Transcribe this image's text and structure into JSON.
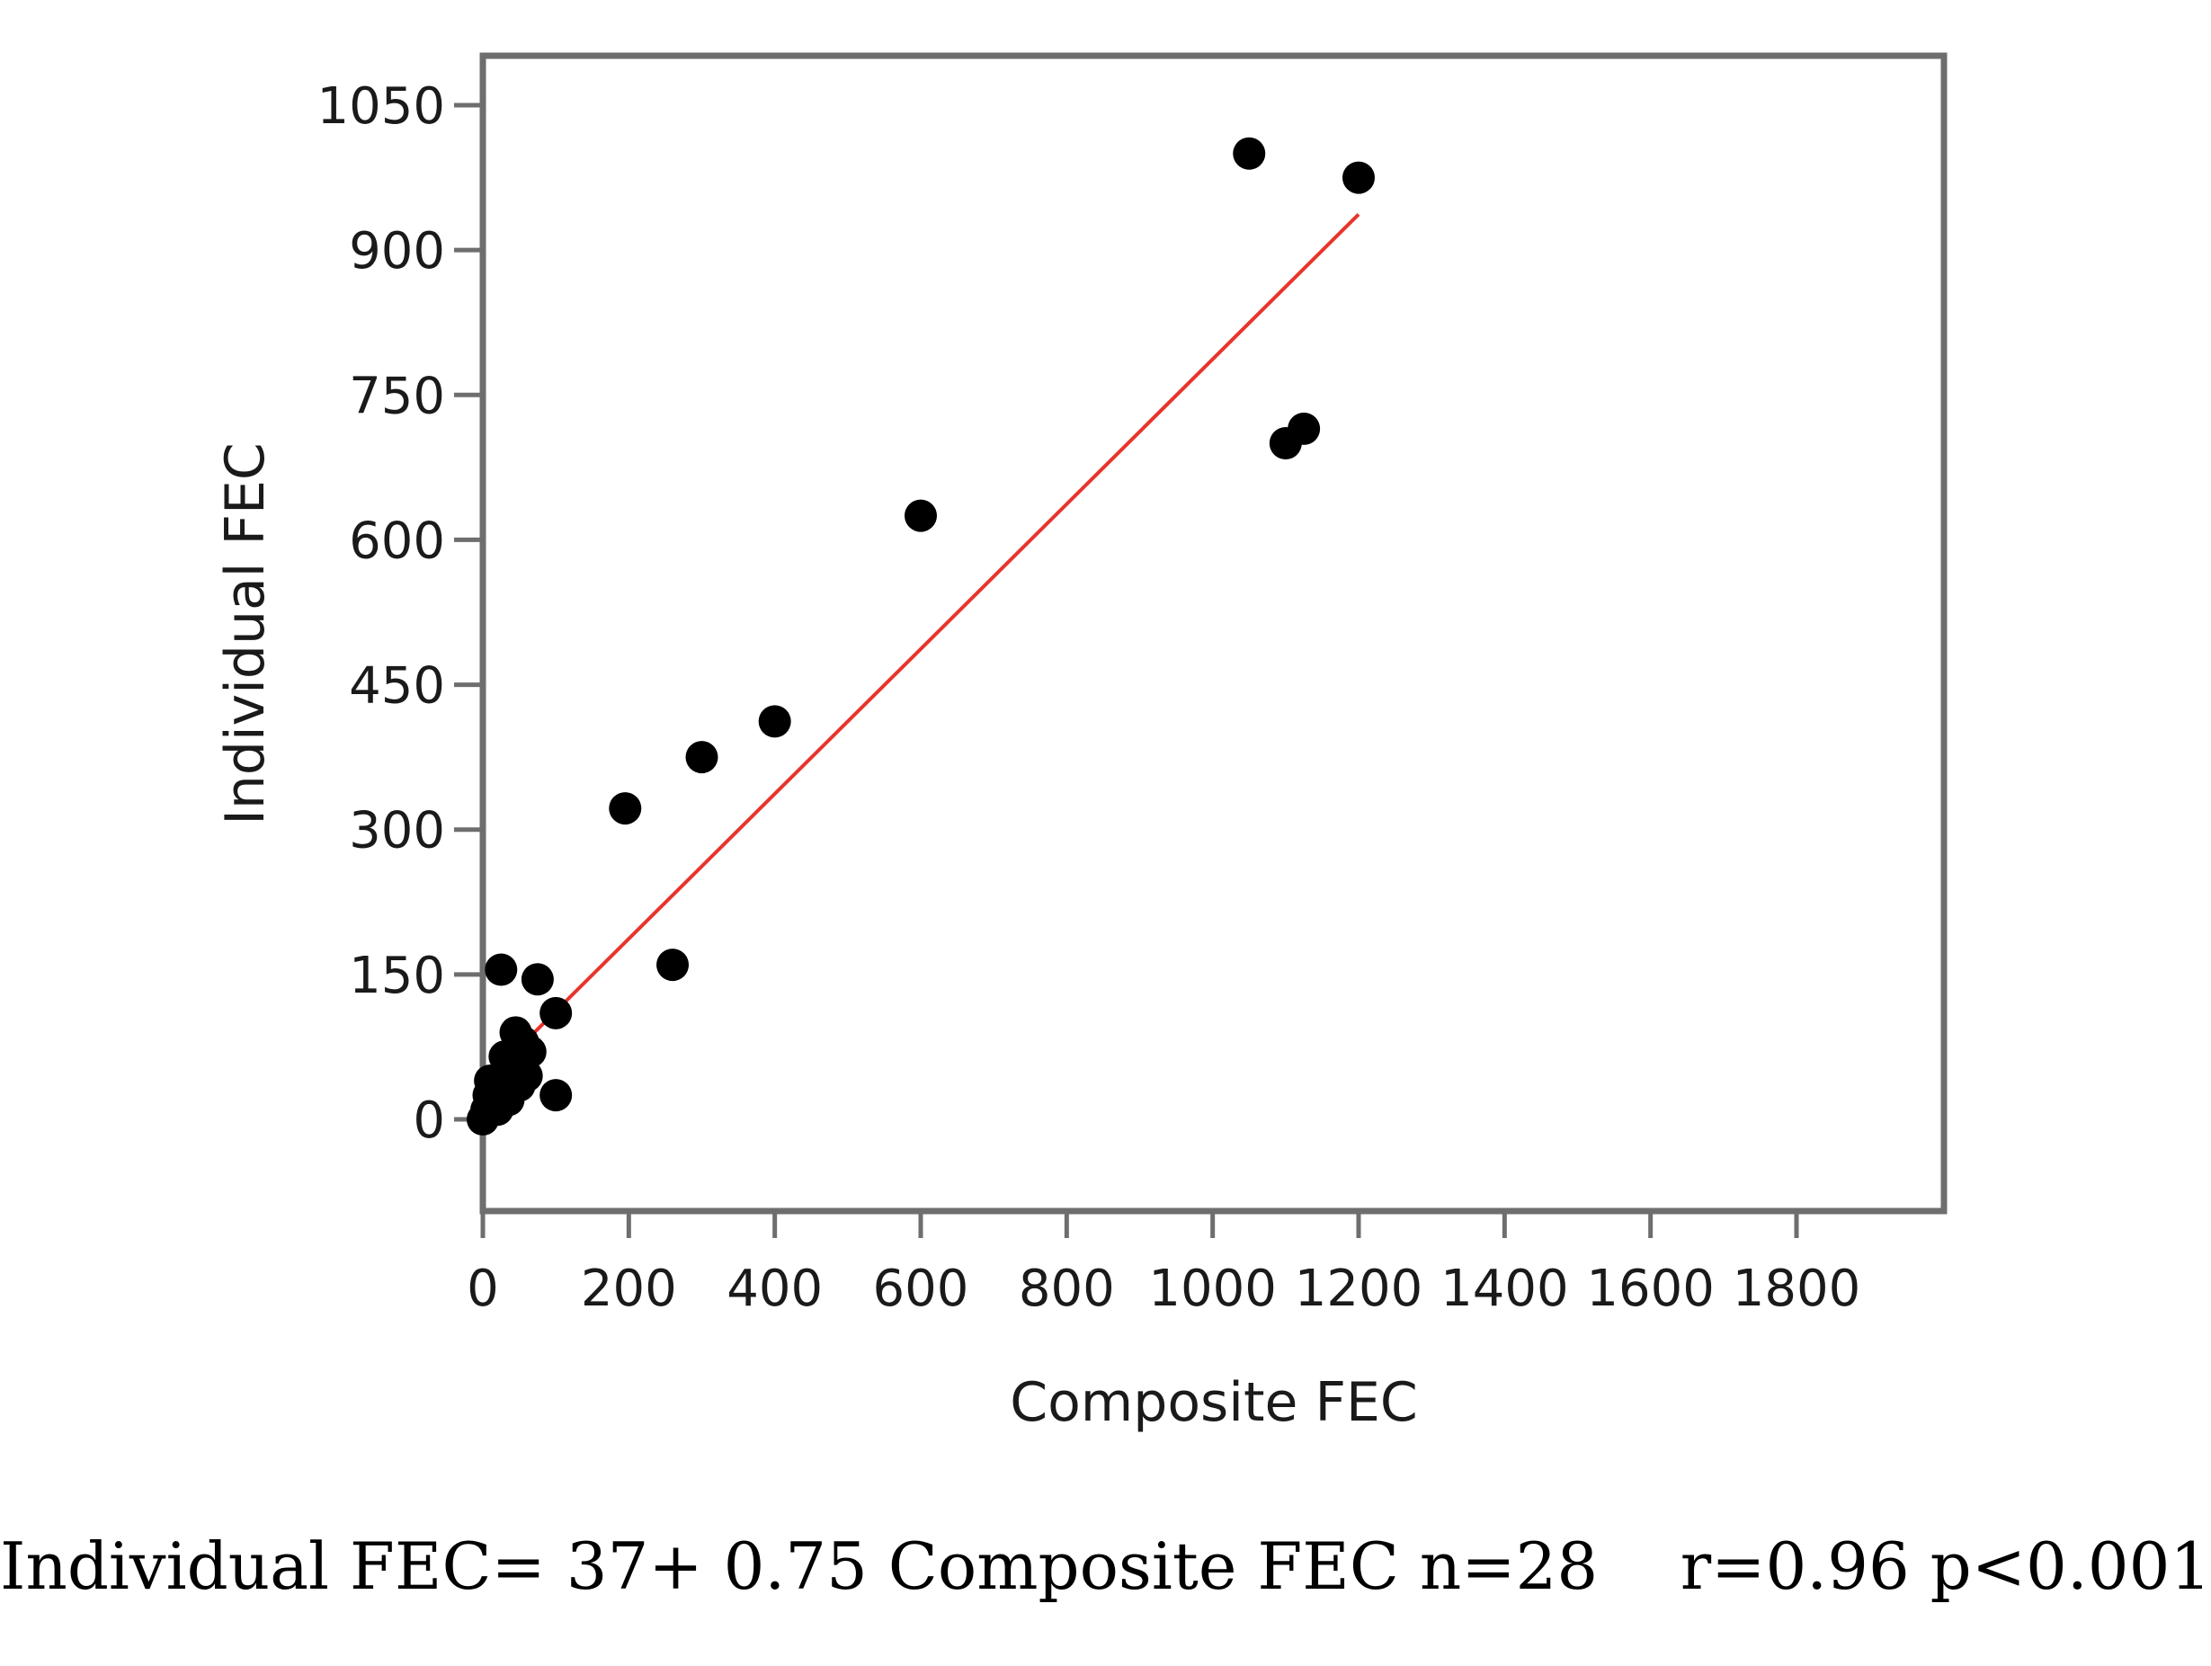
{
  "chart_data": {
    "type": "scatter",
    "title": "",
    "xlabel": "Composite FEC",
    "ylabel": "Individual FEC",
    "xlim": [
      0,
      2000
    ],
    "ylim": [
      -90,
      1100
    ],
    "x_ticks": [
      0,
      200,
      400,
      600,
      800,
      1000,
      1200,
      1400,
      1600,
      1800
    ],
    "y_ticks": [
      0,
      150,
      300,
      450,
      600,
      750,
      900,
      1050
    ],
    "grid": false,
    "series": [
      {
        "color": "#000000",
        "points": [
          {
            "x": 0,
            "y": 0
          },
          {
            "x": 5,
            "y": 10
          },
          {
            "x": 8,
            "y": 25
          },
          {
            "x": 10,
            "y": 40
          },
          {
            "x": 15,
            "y": 15
          },
          {
            "x": 20,
            "y": 30
          },
          {
            "x": 25,
            "y": 155
          },
          {
            "x": 30,
            "y": 65
          },
          {
            "x": 35,
            "y": 20
          },
          {
            "x": 40,
            "y": 55
          },
          {
            "x": 45,
            "y": 90
          },
          {
            "x": 50,
            "y": 35
          },
          {
            "x": 55,
            "y": 80
          },
          {
            "x": 60,
            "y": 45
          },
          {
            "x": 65,
            "y": 70
          },
          {
            "x": 75,
            "y": 145
          },
          {
            "x": 100,
            "y": 110
          },
          {
            "x": 100,
            "y": 25
          },
          {
            "x": 195,
            "y": 322
          },
          {
            "x": 260,
            "y": 160
          },
          {
            "x": 300,
            "y": 375
          },
          {
            "x": 400,
            "y": 412
          },
          {
            "x": 600,
            "y": 625
          },
          {
            "x": 1050,
            "y": 1000
          },
          {
            "x": 1100,
            "y": 700
          },
          {
            "x": 1125,
            "y": 715
          },
          {
            "x": 1200,
            "y": 975
          },
          {
            "x": 20,
            "y": 10
          }
        ]
      }
    ],
    "fit_line": {
      "color": "#e8342c",
      "intercept": 37,
      "slope": 0.75,
      "x_range": [
        0,
        1200
      ]
    }
  },
  "caption": "Individual FEC= 37+ 0.75 Composite FEC n=28    r=0.96 p<0.001"
}
